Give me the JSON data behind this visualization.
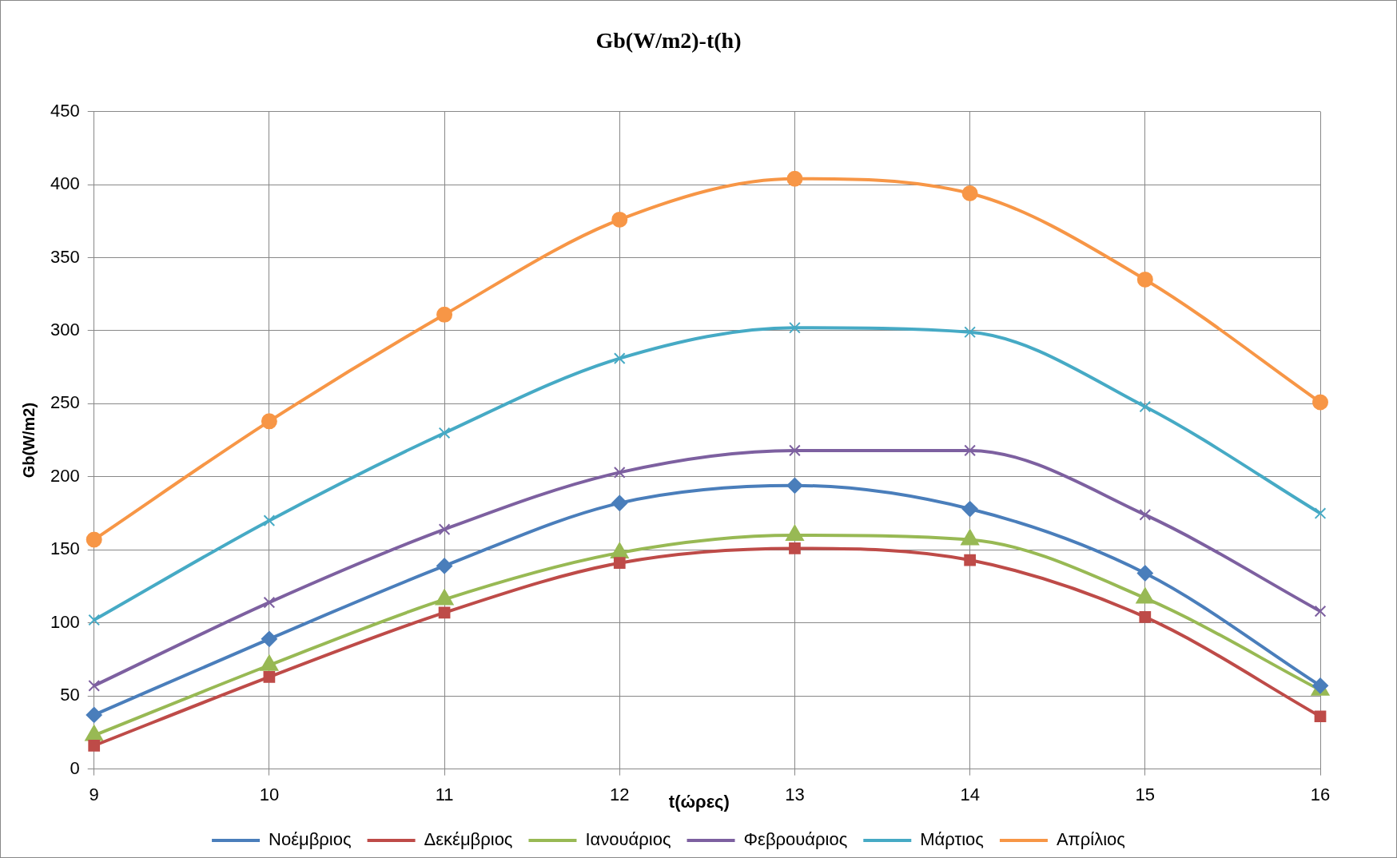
{
  "chart_data": {
    "type": "line",
    "title": "Gb(W/m2)-t(h)",
    "xlabel": "t(ώρες)",
    "ylabel": "Gb(W/m2)",
    "x": [
      9,
      10,
      11,
      12,
      13,
      14,
      15,
      16
    ],
    "series": [
      {
        "name": "Νοέμβριος",
        "color": "#4a7ebb",
        "marker": "diamond",
        "values": [
          37,
          89,
          139,
          182,
          194,
          178,
          134,
          57
        ]
      },
      {
        "name": "Δεκέμβριος",
        "color": "#be4b48",
        "marker": "square",
        "values": [
          16,
          63,
          107,
          141,
          151,
          143,
          104,
          36
        ]
      },
      {
        "name": "Ιανουάριος",
        "color": "#98b954",
        "marker": "triangle",
        "values": [
          23,
          71,
          116,
          148,
          160,
          157,
          117,
          54
        ]
      },
      {
        "name": "Φεβρουάριος",
        "color": "#7d60a0",
        "marker": "cross",
        "values": [
          57,
          114,
          164,
          203,
          218,
          218,
          174,
          108
        ]
      },
      {
        "name": "Μάρτιος",
        "color": "#46aac5",
        "marker": "cross",
        "values": [
          102,
          170,
          230,
          281,
          302,
          299,
          248,
          175
        ]
      },
      {
        "name": "Απρίλιος",
        "color": "#f79646",
        "marker": "circle",
        "values": [
          157,
          238,
          311,
          376,
          404,
          394,
          335,
          251
        ]
      }
    ],
    "xlim": [
      9,
      16
    ],
    "xticks": [
      9,
      10,
      11,
      12,
      13,
      14,
      15,
      16
    ],
    "ylim": [
      0,
      450
    ],
    "yticks": [
      0,
      50,
      100,
      150,
      200,
      250,
      300,
      350,
      400,
      450
    ],
    "grid": true,
    "legend": "bottom",
    "line_style": "solid"
  }
}
